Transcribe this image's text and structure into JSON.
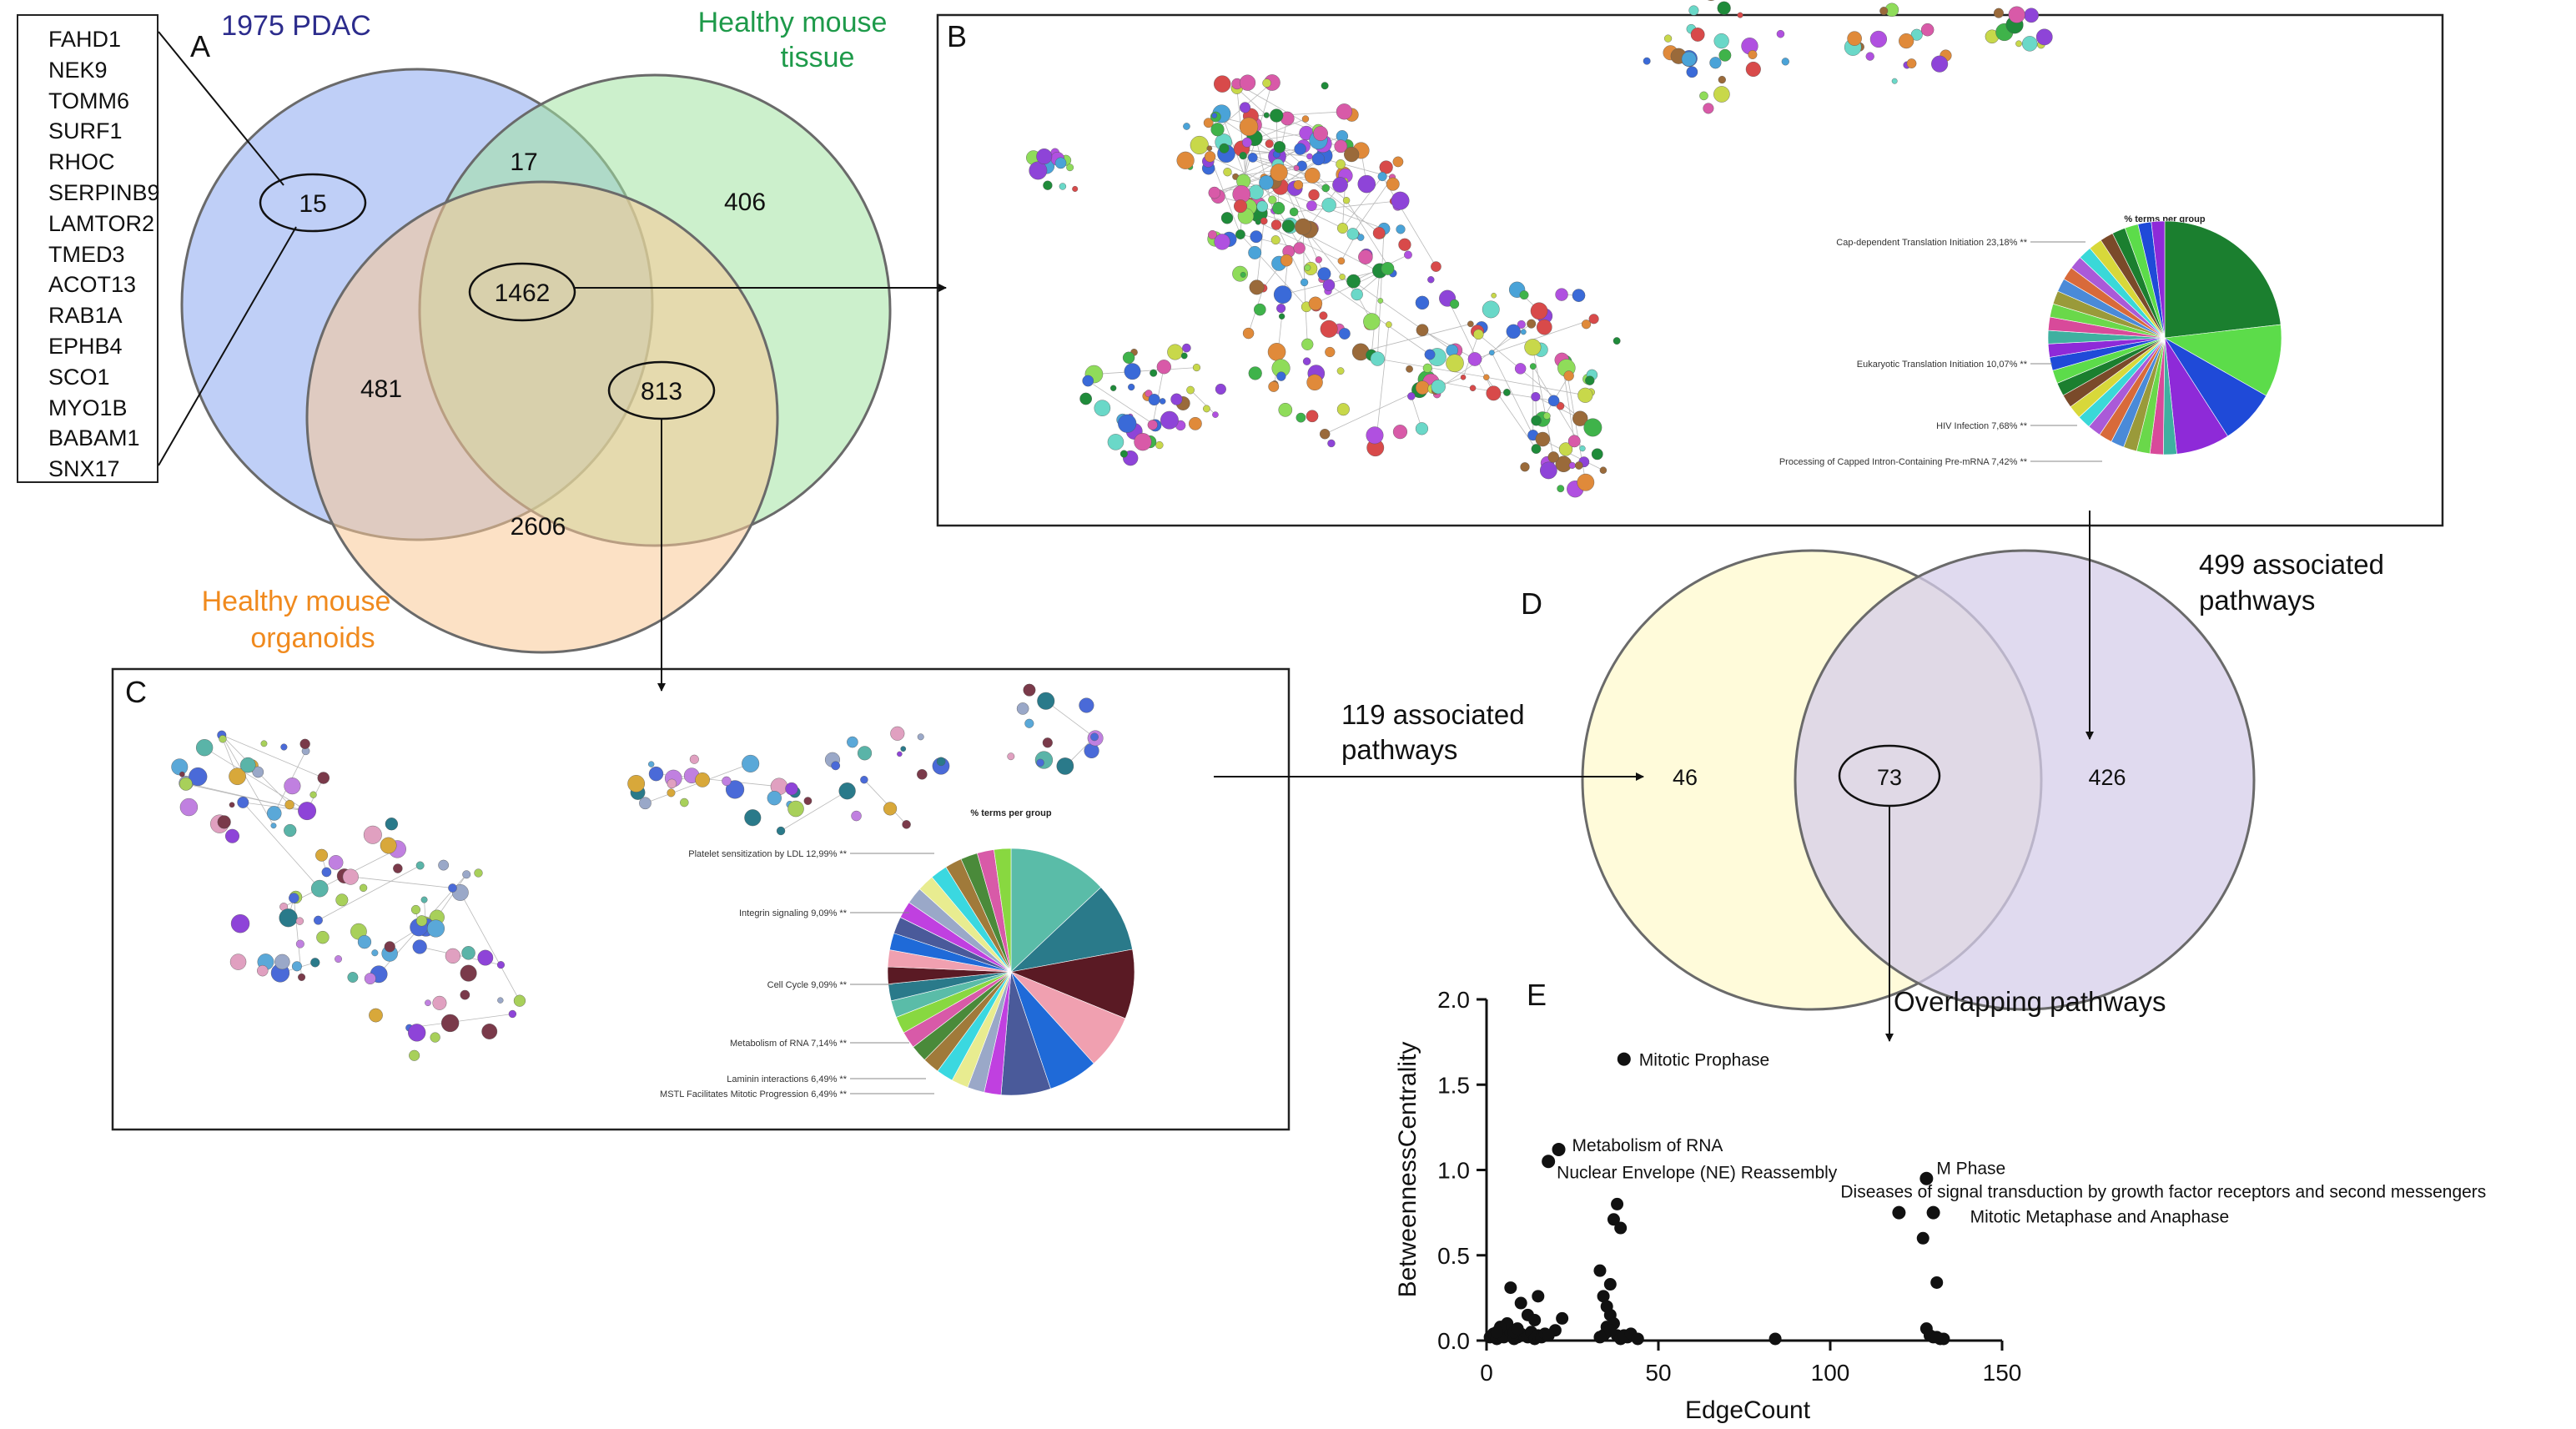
{
  "panels": {
    "A": "A",
    "B": "B",
    "C": "C",
    "D": "D",
    "E": "E"
  },
  "venn_a": {
    "set_pdac": "1975 PDAC",
    "set_tissue_line1": "Healthy mouse",
    "set_tissue_line2": "tissue",
    "set_organoids_line1": "Healthy mouse",
    "set_organoids_line2": "organoids",
    "regions": {
      "pdac_only": "15",
      "pdac_tissue": "17",
      "tissue_only": "406",
      "all_three": "1462",
      "pdac_organoids": "481",
      "tissue_organoids": "813",
      "organoids_only": "2606"
    },
    "colors": {
      "pdac": "#8aa8f0",
      "tissue": "#a3e3a3",
      "organoids": "#f9c896"
    }
  },
  "gene_list": [
    "FAHD1",
    "NEK9",
    "TOMM6",
    "SURF1",
    "RHOC",
    "SERPINB9",
    "LAMTOR2",
    "TMED3",
    "ACOT13",
    "RAB1A",
    "EPHB4",
    "SCO1",
    "MYO1B",
    "BABAM1",
    "SNX17"
  ],
  "panel_b": {
    "pie_title": "% terms per group",
    "pie_labels": [
      "Cap-dependent Translation Initiation 23,18% **",
      "Eukaryotic Translation Initiation 10,07% **",
      "HIV Infection 7,68% **",
      "Processing of Capped Intron-Containing Pre-mRNA 7,42% **"
    ]
  },
  "panel_c": {
    "pie_title": "% terms per group",
    "pie_labels": [
      "Platelet sensitization by LDL 12,99% **",
      "Integrin signaling 9,09% **",
      "Cell Cycle 9,09% **",
      "Metabolism of RNA 7,14% **",
      "Laminin interactions 6,49% **",
      "MSTL Facilitates Mitotic Progression 6,49% **"
    ]
  },
  "venn_d": {
    "left_label_line1": "119 associated",
    "left_label_line2": "pathways",
    "right_label_line1": "499 associated",
    "right_label_line2": "pathways",
    "left_only": "46",
    "overlap": "73",
    "right_only": "426",
    "overlap_label": "Overlapping pathways",
    "colors": {
      "left": "#fffbd6",
      "right": "#d6cdea"
    }
  },
  "chart_data": {
    "type": "scatter",
    "title": "",
    "xlabel": "EdgeCount",
    "ylabel": "BetweennessCentrality",
    "xlim": [
      0,
      150
    ],
    "ylim": [
      0,
      2.0
    ],
    "xticks": [
      "0",
      "50",
      "100",
      "150"
    ],
    "yticks": [
      "0.0",
      "0.5",
      "1.0",
      "1.5",
      "2.0"
    ],
    "labeled_points": [
      {
        "x": 40,
        "y": 1.65,
        "label": "Mitotic Prophase"
      },
      {
        "x": 21,
        "y": 1.12,
        "label": "Metabolism of RNA"
      },
      {
        "x": 18,
        "y": 1.05,
        "label": "Nuclear Envelope (NE) Reassembly"
      },
      {
        "x": 128,
        "y": 0.95,
        "label": "M Phase"
      },
      {
        "x": 120,
        "y": 0.75,
        "label": "Diseases of signal transduction by growth factor receptors and second messengers"
      },
      {
        "x": 130,
        "y": 0.75,
        "label": "Mitotic Metaphase and Anaphase"
      }
    ],
    "points": [
      [
        1,
        0.02
      ],
      [
        2,
        0.04
      ],
      [
        3,
        0.01
      ],
      [
        4,
        0.06
      ],
      [
        5,
        0.02
      ],
      [
        6,
        0.03
      ],
      [
        7,
        0.05
      ],
      [
        8,
        0.01
      ],
      [
        9,
        0.02
      ],
      [
        10,
        0.04
      ],
      [
        11,
        0.03
      ],
      [
        12,
        0.02
      ],
      [
        13,
        0.05
      ],
      [
        14,
        0.01
      ],
      [
        15,
        0.03
      ],
      [
        16,
        0.02
      ],
      [
        17,
        0.04
      ],
      [
        6,
        0.1
      ],
      [
        8,
        0.05
      ],
      [
        10,
        0.22
      ],
      [
        12,
        0.15
      ],
      [
        14,
        0.12
      ],
      [
        7,
        0.31
      ],
      [
        15,
        0.26
      ],
      [
        20,
        0.06
      ],
      [
        22,
        0.13
      ],
      [
        18,
        0.03
      ],
      [
        4,
        0.08
      ],
      [
        3,
        0.05
      ],
      [
        9,
        0.07
      ],
      [
        33,
        0.41
      ],
      [
        34,
        0.26
      ],
      [
        35,
        0.08
      ],
      [
        36,
        0.33
      ],
      [
        37,
        0.71
      ],
      [
        38,
        0.8
      ],
      [
        39,
        0.66
      ],
      [
        36,
        0.15
      ],
      [
        35,
        0.05
      ],
      [
        34,
        0.03
      ],
      [
        37,
        0.1
      ],
      [
        38,
        0.03
      ],
      [
        41,
        0.02
      ],
      [
        39,
        0.01
      ],
      [
        36,
        0.06
      ],
      [
        35,
        0.2
      ],
      [
        40,
        0.03
      ],
      [
        33,
        0.02
      ],
      [
        42,
        0.04
      ],
      [
        44,
        0.01
      ],
      [
        84,
        0.01
      ],
      [
        127,
        0.6
      ],
      [
        131,
        0.34
      ],
      [
        128,
        0.07
      ],
      [
        130,
        0.02
      ],
      [
        132,
        0.01
      ],
      [
        129,
        0.03
      ],
      [
        133,
        0.01
      ],
      [
        131,
        0.02
      ]
    ]
  }
}
